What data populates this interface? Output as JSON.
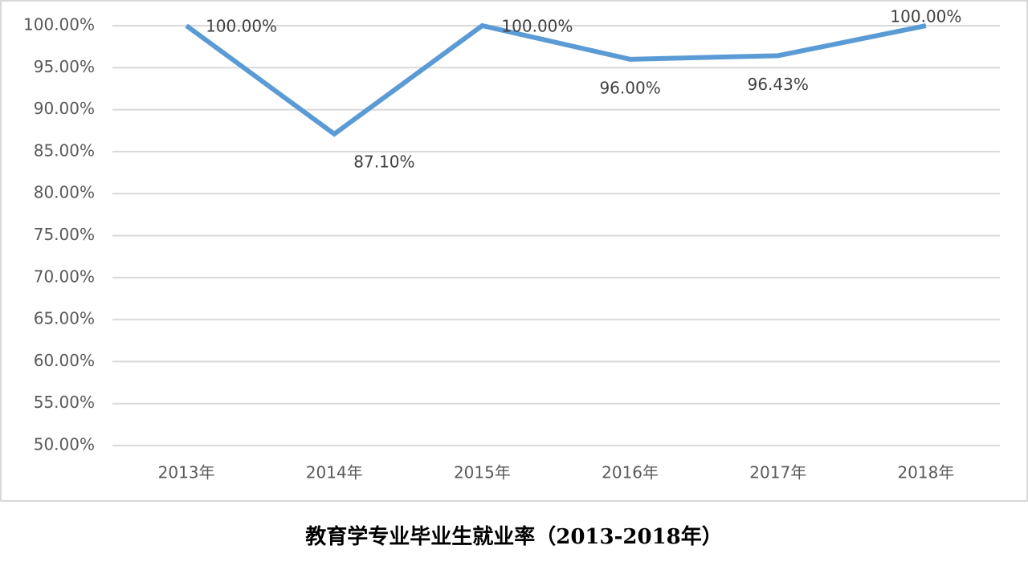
{
  "chart_data": {
    "type": "line",
    "title": "教育学专业毕业生就业率（2013-2018年）",
    "categories": [
      "2013年",
      "2014年",
      "2015年",
      "2016年",
      "2017年",
      "2018年"
    ],
    "values": [
      100,
      87.1,
      100,
      96,
      96.43,
      100
    ],
    "value_labels": [
      "100.00%",
      "87.10%",
      "100.00%",
      "96.00%",
      "96.43%",
      "100.00%"
    ],
    "color": "#5b9bd5",
    "ylim": [
      50,
      100
    ],
    "yticks": [
      {
        "value": 50,
        "label": "50.00%"
      },
      {
        "value": 55,
        "label": "55.00%"
      },
      {
        "value": 60,
        "label": "60.00%"
      },
      {
        "value": 65,
        "label": "65.00%"
      },
      {
        "value": 70,
        "label": "70.00%"
      },
      {
        "value": 75,
        "label": "75.00%"
      },
      {
        "value": 80,
        "label": "80.00%"
      },
      {
        "value": 85,
        "label": "85.00%"
      },
      {
        "value": 90,
        "label": "90.00%"
      },
      {
        "value": 95,
        "label": "95.00%"
      },
      {
        "value": 100,
        "label": "100.00%"
      }
    ],
    "grid": true
  }
}
